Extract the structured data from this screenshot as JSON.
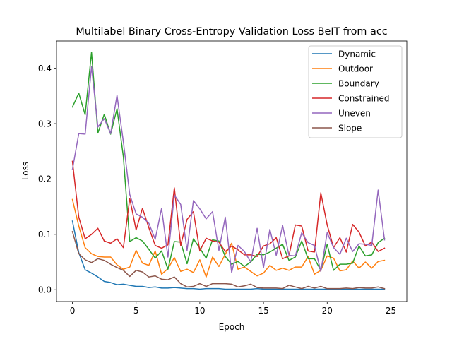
{
  "chart_data": {
    "type": "line",
    "title": "Multilabel Binary Cross-Entropy Validation Loss BeIT from acc",
    "xlabel": "Epoch",
    "ylabel": "Loss",
    "xlim": [
      -1.25,
      26.25
    ],
    "ylim": [
      -0.0214,
      0.4493
    ],
    "xticks": [
      0,
      5,
      10,
      15,
      20,
      25
    ],
    "xtick_labels": [
      "0",
      "5",
      "10",
      "15",
      "20",
      "25"
    ],
    "yticks": [
      0.0,
      0.1,
      0.2,
      0.3,
      0.4
    ],
    "ytick_labels": [
      "0.0",
      "0.1",
      "0.2",
      "0.3",
      "0.4"
    ],
    "grid": false,
    "legend_position": "top-right",
    "x": [
      0,
      0.5,
      1,
      1.5,
      2,
      2.5,
      3,
      3.5,
      4,
      4.5,
      5,
      5.5,
      6,
      6.5,
      7,
      7.5,
      8,
      8.5,
      9,
      9.5,
      10,
      10.5,
      11,
      11.5,
      12,
      12.5,
      13,
      13.5,
      14,
      14.5,
      15,
      15.5,
      16,
      16.5,
      17,
      17.5,
      18,
      18.5,
      19,
      19.5,
      20,
      20.5,
      21,
      21.5,
      22,
      22.5,
      23,
      23.5,
      24,
      24.5
    ],
    "series": [
      {
        "name": "Dynamic",
        "color": "#1f77b4",
        "values": [
          0.124,
          0.067,
          0.036,
          0.03,
          0.023,
          0.015,
          0.013,
          0.009,
          0.01,
          0.008,
          0.006,
          0.006,
          0.004,
          0.005,
          0.003,
          0.003,
          0.004,
          0.003,
          0.002,
          0.002,
          0.001,
          0.002,
          0.002,
          0.002,
          0.001,
          0.001,
          0.001,
          0.001,
          0.001,
          0.002,
          0.001,
          0.001,
          0.001,
          0.001,
          0.001,
          0.001,
          0.001,
          0.001,
          0.001,
          0.001,
          0.001,
          0.001,
          0.001,
          0.001,
          0.001,
          0.001,
          0.001,
          0.001,
          0.001,
          0.001
        ]
      },
      {
        "name": "Outdoor",
        "color": "#ff7f0e",
        "values": [
          0.163,
          0.115,
          0.076,
          0.065,
          0.06,
          0.059,
          0.059,
          0.045,
          0.037,
          0.041,
          0.071,
          0.048,
          0.044,
          0.07,
          0.028,
          0.038,
          0.058,
          0.033,
          0.037,
          0.031,
          0.054,
          0.023,
          0.059,
          0.042,
          0.064,
          0.084,
          0.037,
          0.041,
          0.033,
          0.025,
          0.03,
          0.044,
          0.035,
          0.039,
          0.035,
          0.041,
          0.041,
          0.06,
          0.028,
          0.035,
          0.061,
          0.057,
          0.034,
          0.036,
          0.052,
          0.039,
          0.05,
          0.039,
          0.051,
          0.053
        ]
      },
      {
        "name": "Boundary",
        "color": "#2ca02c",
        "values": [
          0.33,
          0.355,
          0.316,
          0.429,
          0.283,
          0.317,
          0.281,
          0.327,
          0.24,
          0.087,
          0.094,
          0.088,
          0.073,
          0.057,
          0.07,
          0.037,
          0.087,
          0.086,
          0.047,
          0.092,
          0.075,
          0.057,
          0.09,
          0.088,
          0.06,
          0.046,
          0.051,
          0.042,
          0.05,
          0.064,
          0.063,
          0.068,
          0.075,
          0.082,
          0.053,
          0.059,
          0.088,
          0.056,
          0.056,
          0.035,
          0.082,
          0.035,
          0.046,
          0.046,
          0.048,
          0.079,
          0.061,
          0.063,
          0.085,
          0.093
        ]
      },
      {
        "name": "Constrained",
        "color": "#d62728",
        "values": [
          0.232,
          0.131,
          0.092,
          0.1,
          0.111,
          0.088,
          0.084,
          0.092,
          0.076,
          0.165,
          0.108,
          0.147,
          0.112,
          0.08,
          0.075,
          0.081,
          0.184,
          0.08,
          0.127,
          0.141,
          0.07,
          0.093,
          0.088,
          0.086,
          0.069,
          0.079,
          0.072,
          0.063,
          0.063,
          0.06,
          0.079,
          0.083,
          0.094,
          0.056,
          0.061,
          0.117,
          0.115,
          0.07,
          0.068,
          0.175,
          0.117,
          0.076,
          0.094,
          0.068,
          0.118,
          0.104,
          0.079,
          0.086,
          0.069,
          0.075
        ]
      },
      {
        "name": "Uneven",
        "color": "#9467bd",
        "values": [
          0.217,
          0.282,
          0.281,
          0.403,
          0.294,
          0.309,
          0.282,
          0.351,
          0.267,
          0.172,
          0.137,
          0.131,
          0.12,
          0.091,
          0.147,
          0.059,
          0.171,
          0.154,
          0.071,
          0.161,
          0.146,
          0.128,
          0.141,
          0.071,
          0.131,
          0.031,
          0.08,
          0.069,
          0.05,
          0.111,
          0.04,
          0.109,
          0.062,
          0.116,
          0.062,
          0.061,
          0.103,
          0.085,
          0.08,
          0.033,
          0.103,
          0.076,
          0.064,
          0.093,
          0.069,
          0.083,
          0.082,
          0.08,
          0.18,
          0.09
        ]
      },
      {
        "name": "Slope",
        "color": "#8c564b",
        "values": [
          0.105,
          0.065,
          0.054,
          0.049,
          0.056,
          0.053,
          0.046,
          0.04,
          0.035,
          0.024,
          0.035,
          0.032,
          0.023,
          0.025,
          0.019,
          0.018,
          0.023,
          0.011,
          0.005,
          0.006,
          0.011,
          0.006,
          0.011,
          0.011,
          0.011,
          0.01,
          0.005,
          0.007,
          0.01,
          0.004,
          0.003,
          0.003,
          0.003,
          0.002,
          0.008,
          0.005,
          0.002,
          0.006,
          0.003,
          0.006,
          0.002,
          0.002,
          0.002,
          0.003,
          0.002,
          0.004,
          0.003,
          0.003,
          0.005,
          0.002
        ]
      }
    ]
  }
}
